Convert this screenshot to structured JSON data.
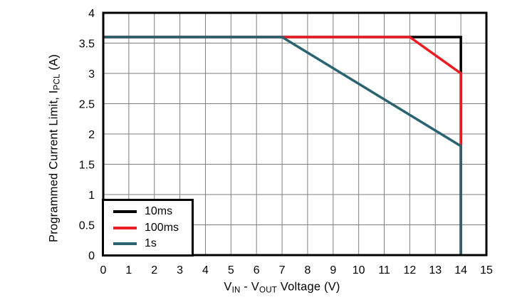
{
  "chart_data": {
    "type": "line",
    "title": "",
    "xlabel": "VIN - VOUT Voltage (V)",
    "ylabel": "Programmed Current Limit, IPCL (A)",
    "xlim": [
      0,
      15
    ],
    "ylim": [
      0,
      4
    ],
    "x_ticks": [
      0,
      1,
      2,
      3,
      4,
      5,
      6,
      7,
      8,
      9,
      10,
      11,
      12,
      13,
      14,
      15
    ],
    "y_ticks": [
      0,
      0.5,
      1,
      1.5,
      2,
      2.5,
      3,
      3.5,
      4
    ],
    "grid": true,
    "grid_color": "#7f7f7f",
    "border_color": "#000000",
    "legend_position": "lower-left",
    "series": [
      {
        "name": "10ms",
        "color": "#000000",
        "points": [
          [
            0,
            3.6
          ],
          [
            14,
            3.6
          ],
          [
            14,
            0
          ]
        ]
      },
      {
        "name": "100ms",
        "color": "#ec1c24",
        "points": [
          [
            0,
            3.6
          ],
          [
            12,
            3.6
          ],
          [
            14,
            3.0
          ],
          [
            14,
            0
          ]
        ]
      },
      {
        "name": "1s",
        "color": "#2b6470",
        "points": [
          [
            0,
            3.6
          ],
          [
            7,
            3.6
          ],
          [
            14,
            1.8
          ],
          [
            14,
            0
          ]
        ]
      }
    ]
  },
  "axis_labels": {
    "x": {
      "p1": "V",
      "s1": "IN",
      "p2": " - V",
      "s2": "OUT",
      "p3": " Voltage (V)"
    },
    "y": {
      "pre": "Programmed Current Limit, I",
      "sub": "PCL",
      "post": " (A)"
    }
  },
  "legend": {
    "items": [
      {
        "label": "10ms"
      },
      {
        "label": "100ms"
      },
      {
        "label": "1s"
      }
    ]
  }
}
